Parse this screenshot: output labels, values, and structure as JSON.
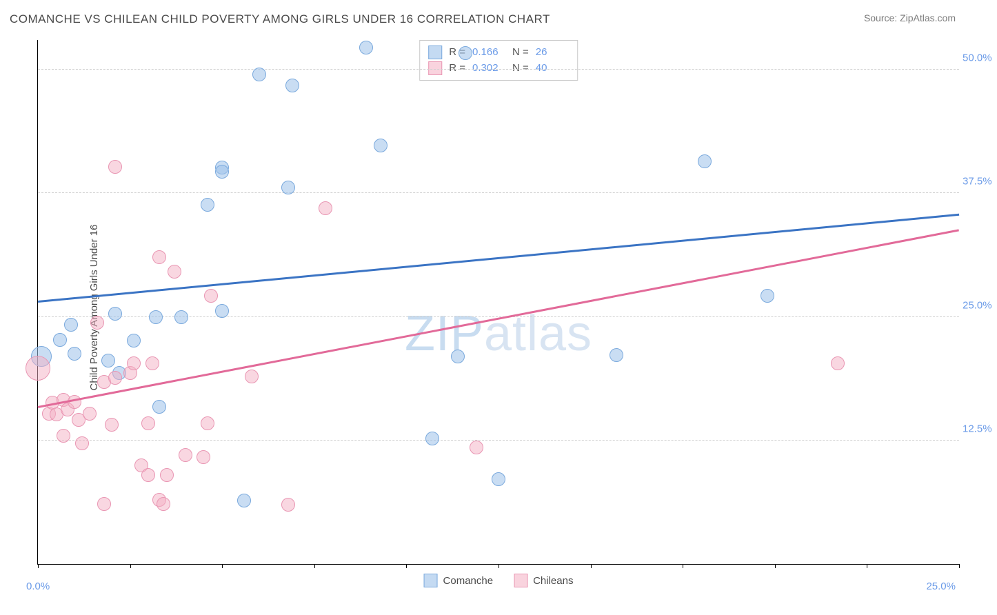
{
  "title": "COMANCHE VS CHILEAN CHILD POVERTY AMONG GIRLS UNDER 16 CORRELATION CHART",
  "source": "Source: ZipAtlas.com",
  "watermark_a": "ZIP",
  "watermark_b": "atlas",
  "y_axis_label": "Child Poverty Among Girls Under 16",
  "chart": {
    "type": "scatter",
    "x_domain": [
      0,
      25
    ],
    "y_domain": [
      0,
      53
    ],
    "y_ticks": [
      12.5,
      25.0,
      37.5,
      50.0
    ],
    "y_tick_labels": [
      "12.5%",
      "25.0%",
      "37.5%",
      "50.0%"
    ],
    "x_left_label": "0.0%",
    "x_right_label": "25.0%",
    "x_tick_positions": [
      0,
      2.5,
      5,
      7.5,
      10,
      12.5,
      15,
      17.5,
      20,
      22.5,
      25
    ],
    "background_color": "#ffffff",
    "grid_color": "#d0d0d0",
    "series": [
      {
        "name": "Comanche",
        "color_fill": "rgba(157,193,233,0.55)",
        "color_stroke": "#7aa9dd",
        "trend_color": "#3b74c4",
        "R": "0.166",
        "N": "26",
        "marker_radius": 9,
        "trend": {
          "x1": 0,
          "y1": 26.5,
          "x2": 25,
          "y2": 35.3
        },
        "points": [
          {
            "x": 0.1,
            "y": 21.0,
            "r": 14
          },
          {
            "x": 0.6,
            "y": 22.7,
            "r": 9
          },
          {
            "x": 0.9,
            "y": 24.2,
            "r": 9
          },
          {
            "x": 1.0,
            "y": 21.3,
            "r": 9
          },
          {
            "x": 1.9,
            "y": 20.6,
            "r": 9
          },
          {
            "x": 2.1,
            "y": 25.3,
            "r": 9
          },
          {
            "x": 2.2,
            "y": 19.3,
            "r": 9
          },
          {
            "x": 2.6,
            "y": 22.6,
            "r": 9
          },
          {
            "x": 3.2,
            "y": 25.0,
            "r": 9
          },
          {
            "x": 3.3,
            "y": 15.9,
            "r": 9
          },
          {
            "x": 3.9,
            "y": 25.0,
            "r": 9
          },
          {
            "x": 4.6,
            "y": 36.3,
            "r": 9
          },
          {
            "x": 5.0,
            "y": 25.6,
            "r": 9
          },
          {
            "x": 5.0,
            "y": 40.1,
            "r": 9
          },
          {
            "x": 5.0,
            "y": 39.7,
            "r": 9
          },
          {
            "x": 5.6,
            "y": 6.4,
            "r": 9
          },
          {
            "x": 6.0,
            "y": 49.5,
            "r": 9
          },
          {
            "x": 6.8,
            "y": 38.1,
            "r": 9
          },
          {
            "x": 6.9,
            "y": 48.4,
            "r": 9
          },
          {
            "x": 8.9,
            "y": 52.2,
            "r": 9
          },
          {
            "x": 9.3,
            "y": 42.3,
            "r": 9
          },
          {
            "x": 10.7,
            "y": 12.7,
            "r": 9
          },
          {
            "x": 11.4,
            "y": 21.0,
            "r": 9
          },
          {
            "x": 12.5,
            "y": 8.6,
            "r": 9
          },
          {
            "x": 15.7,
            "y": 21.1,
            "r": 9
          },
          {
            "x": 18.1,
            "y": 40.7,
            "r": 9
          },
          {
            "x": 19.8,
            "y": 27.1,
            "r": 9
          },
          {
            "x": 11.6,
            "y": 51.7,
            "r": 9
          }
        ]
      },
      {
        "name": "Chileans",
        "color_fill": "rgba(244,175,195,0.5)",
        "color_stroke": "#e996b3",
        "trend_color": "#e26a99",
        "R": "0.302",
        "N": "40",
        "marker_radius": 9,
        "trend": {
          "x1": 0,
          "y1": 15.8,
          "x2": 25,
          "y2": 33.7
        },
        "points": [
          {
            "x": 0.0,
            "y": 19.8,
            "r": 17
          },
          {
            "x": 0.3,
            "y": 15.2,
            "r": 9
          },
          {
            "x": 0.4,
            "y": 16.3,
            "r": 9
          },
          {
            "x": 0.5,
            "y": 15.1,
            "r": 9
          },
          {
            "x": 0.7,
            "y": 16.6,
            "r": 9
          },
          {
            "x": 0.7,
            "y": 13.0,
            "r": 9
          },
          {
            "x": 0.8,
            "y": 15.6,
            "r": 9
          },
          {
            "x": 1.0,
            "y": 16.4,
            "r": 9
          },
          {
            "x": 1.1,
            "y": 14.6,
            "r": 9
          },
          {
            "x": 1.2,
            "y": 12.2,
            "r": 9
          },
          {
            "x": 1.4,
            "y": 15.2,
            "r": 9
          },
          {
            "x": 1.6,
            "y": 24.4,
            "r": 9
          },
          {
            "x": 1.8,
            "y": 6.1,
            "r": 9
          },
          {
            "x": 1.8,
            "y": 18.4,
            "r": 9
          },
          {
            "x": 2.0,
            "y": 14.1,
            "r": 9
          },
          {
            "x": 2.1,
            "y": 18.8,
            "r": 9
          },
          {
            "x": 2.1,
            "y": 40.2,
            "r": 9
          },
          {
            "x": 2.5,
            "y": 19.3,
            "r": 9
          },
          {
            "x": 2.6,
            "y": 20.3,
            "r": 9
          },
          {
            "x": 2.8,
            "y": 10.0,
            "r": 9
          },
          {
            "x": 3.0,
            "y": 9.0,
            "r": 9
          },
          {
            "x": 3.0,
            "y": 14.2,
            "r": 9
          },
          {
            "x": 3.1,
            "y": 20.3,
            "r": 9
          },
          {
            "x": 3.3,
            "y": 31.0,
            "r": 9
          },
          {
            "x": 3.3,
            "y": 6.5,
            "r": 9
          },
          {
            "x": 3.4,
            "y": 6.1,
            "r": 9
          },
          {
            "x": 3.5,
            "y": 9.0,
            "r": 9
          },
          {
            "x": 3.7,
            "y": 29.6,
            "r": 9
          },
          {
            "x": 4.0,
            "y": 11.0,
            "r": 9
          },
          {
            "x": 4.5,
            "y": 10.8,
            "r": 9
          },
          {
            "x": 4.6,
            "y": 14.2,
            "r": 9
          },
          {
            "x": 4.7,
            "y": 27.1,
            "r": 9
          },
          {
            "x": 5.8,
            "y": 19.0,
            "r": 9
          },
          {
            "x": 6.8,
            "y": 6.0,
            "r": 9
          },
          {
            "x": 7.8,
            "y": 36.0,
            "r": 9
          },
          {
            "x": 11.9,
            "y": 11.8,
            "r": 9
          },
          {
            "x": 21.7,
            "y": 20.3,
            "r": 9
          }
        ]
      }
    ]
  }
}
